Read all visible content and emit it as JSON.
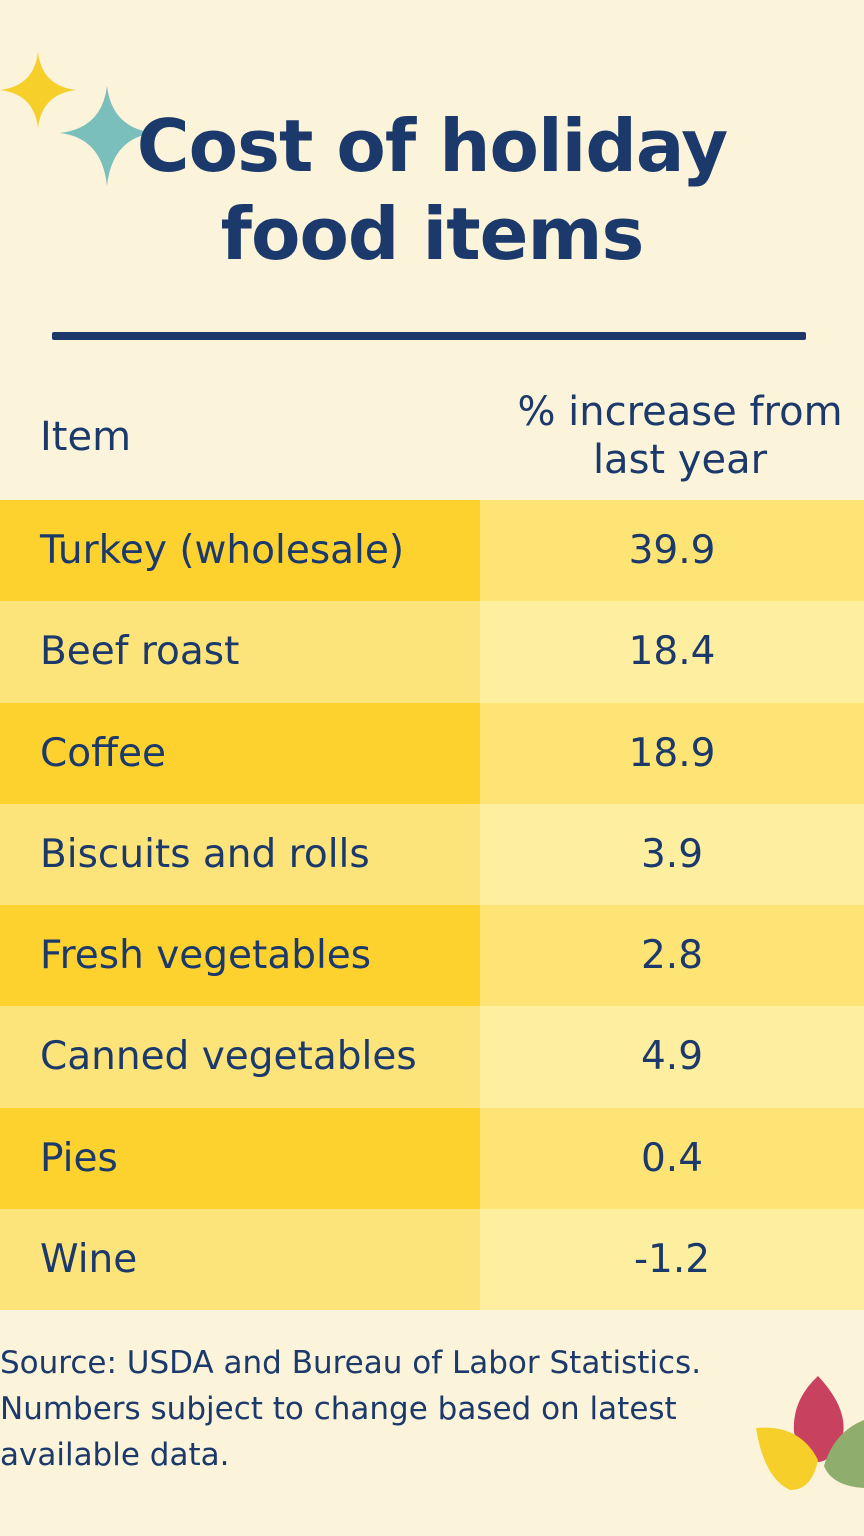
{
  "header": {
    "title": "Cost of holiday food items"
  },
  "table": {
    "columns": [
      "Item",
      "% increase from last year"
    ],
    "rows": [
      [
        "Turkey (wholesale)",
        39.9
      ],
      [
        "Beef roast",
        18.4
      ],
      [
        "Coffee",
        18.9
      ],
      [
        "Biscuits and rolls",
        3.9
      ],
      [
        "Fresh vegetables",
        2.8
      ],
      [
        "Canned vegetables",
        4.9
      ],
      [
        "Pies",
        0.4
      ],
      [
        "Wine",
        -1.2
      ]
    ]
  },
  "footer": {
    "source": "Source: USDA and Bureau of Labor Statistics. Numbers subject to change based on latest available data."
  }
}
